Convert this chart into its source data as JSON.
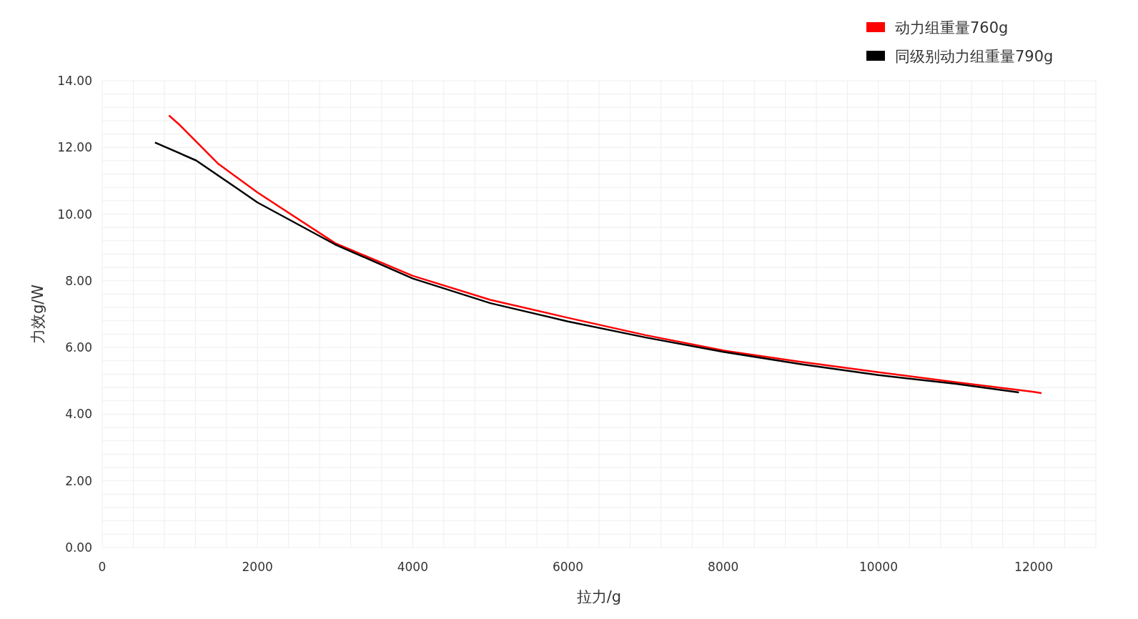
{
  "chart_data": {
    "type": "line",
    "xlabel": "拉力/g",
    "ylabel": "力效g/W",
    "xlim": [
      0,
      12800
    ],
    "ylim": [
      0,
      14
    ],
    "xticks": [
      0,
      {
        "value": 400,
        "label": null
      },
      {
        "value": 800,
        "label": null
      },
      {
        "value": 1200,
        "label": null
      },
      {
        "value": 1600,
        "label": null
      },
      2000,
      {
        "value": 2400,
        "label": null
      },
      {
        "value": 2800,
        "label": null
      },
      {
        "value": 3200,
        "label": null
      },
      {
        "value": 3600,
        "label": null
      },
      4000,
      {
        "value": 4400,
        "label": null
      },
      {
        "value": 4800,
        "label": null
      },
      {
        "value": 5200,
        "label": null
      },
      {
        "value": 5600,
        "label": null
      },
      6000,
      {
        "value": 6400,
        "label": null
      },
      {
        "value": 6800,
        "label": null
      },
      {
        "value": 7200,
        "label": null
      },
      {
        "value": 7600,
        "label": null
      },
      8000,
      {
        "value": 8400,
        "label": null
      },
      {
        "value": 8800,
        "label": null
      },
      {
        "value": 9200,
        "label": null
      },
      {
        "value": 9600,
        "label": null
      },
      10000,
      {
        "value": 10400,
        "label": null
      },
      {
        "value": 10800,
        "label": null
      },
      {
        "value": 11200,
        "label": null
      },
      {
        "value": 11600,
        "label": null
      },
      12000,
      {
        "value": 12400,
        "label": null
      },
      {
        "value": 12800,
        "label": null
      }
    ],
    "yticks": [
      {
        "value": 0,
        "label": "0.00"
      },
      {
        "value": 0.4,
        "label": null
      },
      {
        "value": 0.8,
        "label": null
      },
      {
        "value": 1.2,
        "label": null
      },
      {
        "value": 1.6,
        "label": null
      },
      {
        "value": 2,
        "label": "2.00"
      },
      {
        "value": 2.4,
        "label": null
      },
      {
        "value": 2.8,
        "label": null
      },
      {
        "value": 3.2,
        "label": null
      },
      {
        "value": 3.6,
        "label": null
      },
      {
        "value": 4,
        "label": "4.00"
      },
      {
        "value": 4.4,
        "label": null
      },
      {
        "value": 4.8,
        "label": null
      },
      {
        "value": 5.2,
        "label": null
      },
      {
        "value": 5.6,
        "label": null
      },
      {
        "value": 6,
        "label": "6.00"
      },
      {
        "value": 6.4,
        "label": null
      },
      {
        "value": 6.8,
        "label": null
      },
      {
        "value": 7.2,
        "label": null
      },
      {
        "value": 7.6,
        "label": null
      },
      {
        "value": 8,
        "label": "8.00"
      },
      {
        "value": 8.4,
        "label": null
      },
      {
        "value": 8.8,
        "label": null
      },
      {
        "value": 9.2,
        "label": null
      },
      {
        "value": 9.6,
        "label": null
      },
      {
        "value": 10,
        "label": "10.00"
      },
      {
        "value": 10.4,
        "label": null
      },
      {
        "value": 10.8,
        "label": null
      },
      {
        "value": 11.2,
        "label": null
      },
      {
        "value": 11.6,
        "label": null
      },
      {
        "value": 12,
        "label": "12.00"
      },
      {
        "value": 12.4,
        "label": null
      },
      {
        "value": 12.8,
        "label": null
      },
      {
        "value": 13.2,
        "label": null
      },
      {
        "value": 13.6,
        "label": null
      },
      {
        "value": 14,
        "label": "14.00"
      }
    ],
    "grid": true,
    "legend": "top right",
    "series": [
      {
        "name": "动力组重量760g",
        "color": "#ff0000",
        "x": [
          860,
          1000,
          1490,
          2000,
          3000,
          4000,
          5000,
          6000,
          7000,
          8000,
          9000,
          10000,
          11000,
          12000,
          12100
        ],
        "values": [
          12.96,
          12.67,
          11.52,
          10.65,
          9.13,
          8.15,
          7.43,
          6.89,
          6.37,
          5.91,
          5.57,
          5.26,
          4.96,
          4.67,
          4.63
        ]
      },
      {
        "name": "同级别动力组重量790g",
        "color": "#000000",
        "x": [
          680,
          1210,
          1770,
          2000,
          3000,
          4000,
          5000,
          6000,
          7000,
          8000,
          9000,
          10000,
          11000,
          11810
        ],
        "values": [
          12.15,
          11.61,
          10.72,
          10.35,
          9.09,
          8.07,
          7.33,
          6.78,
          6.3,
          5.87,
          5.5,
          5.17,
          4.91,
          4.65
        ]
      }
    ]
  }
}
